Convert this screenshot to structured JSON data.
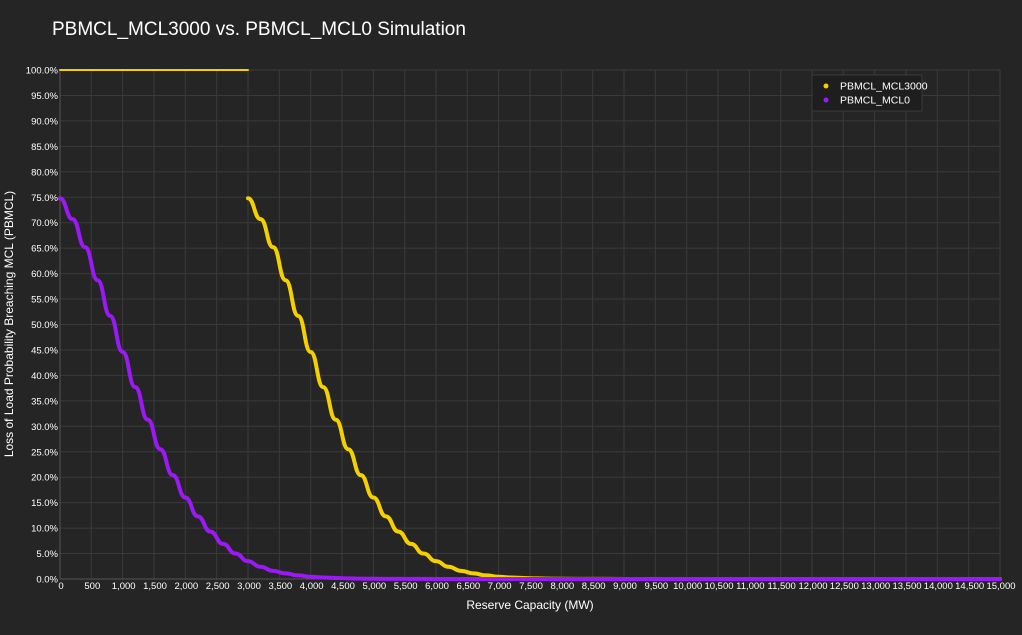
{
  "chart_data": {
    "type": "line",
    "title": "PBMCL_MCL3000 vs. PBMCL_MCL0 Simulation",
    "xlabel": "Reserve Capacity (MW)",
    "ylabel": "Loss of Load Probability Breaching MCL (PBMCL)",
    "xlim": [
      0,
      15000
    ],
    "ylim": [
      0,
      100
    ],
    "x_ticks": [
      "0",
      "500",
      "1,000",
      "1,500",
      "2,000",
      "2,500",
      "3,000",
      "3,500",
      "4,000",
      "4,500",
      "5,000",
      "5,500",
      "6,000",
      "6,500",
      "7,000",
      "7,500",
      "8,000",
      "8,500",
      "9,000",
      "9,500",
      "10,000",
      "10,500",
      "11,000",
      "11,500",
      "12,000",
      "12,500",
      "13,000",
      "13,500",
      "14,000",
      "14,500",
      "15,000"
    ],
    "y_ticks": [
      "0.0%",
      "5.0%",
      "10.0%",
      "15.0%",
      "20.0%",
      "25.0%",
      "30.0%",
      "35.0%",
      "40.0%",
      "45.0%",
      "50.0%",
      "55.0%",
      "60.0%",
      "65.0%",
      "70.0%",
      "75.0%",
      "80.0%",
      "85.0%",
      "90.0%",
      "95.0%",
      "100.0%"
    ],
    "grid": true,
    "legend_position": "top-right",
    "series": [
      {
        "name": "PBMCL_MCL3000",
        "color": "#f5d000",
        "x": [
          0,
          3000,
          3000,
          3200,
          3400,
          3600,
          3800,
          4000,
          4200,
          4400,
          4600,
          4800,
          5000,
          5200,
          5400,
          5600,
          5800,
          6000,
          6200,
          6400,
          6600,
          6800,
          7000,
          7200,
          7400,
          7600,
          7800,
          8000,
          8500,
          9000,
          10000,
          12000,
          15000
        ],
        "y": [
          100,
          100,
          74.8,
          70.7,
          65.2,
          58.7,
          51.7,
          44.6,
          37.7,
          31.3,
          25.5,
          20.4,
          16.0,
          12.3,
          9.3,
          6.9,
          5.0,
          3.5,
          2.4,
          1.6,
          1.1,
          0.7,
          0.45,
          0.3,
          0.2,
          0.12,
          0.07,
          0.04,
          0.02,
          0.01,
          0,
          0,
          0
        ]
      },
      {
        "name": "PBMCL_MCL0",
        "color": "#9b19f5",
        "x": [
          0,
          200,
          400,
          600,
          800,
          1000,
          1200,
          1400,
          1600,
          1800,
          2000,
          2200,
          2400,
          2600,
          2800,
          3000,
          3200,
          3400,
          3600,
          3800,
          4000,
          4200,
          4400,
          4600,
          4800,
          5000,
          5500,
          6000,
          7000,
          9000,
          12000,
          15000
        ],
        "y": [
          74.8,
          70.7,
          65.2,
          58.7,
          51.7,
          44.6,
          37.7,
          31.3,
          25.5,
          20.4,
          16.0,
          12.3,
          9.3,
          6.9,
          5.0,
          3.5,
          2.4,
          1.6,
          1.1,
          0.7,
          0.45,
          0.3,
          0.2,
          0.12,
          0.07,
          0.04,
          0.02,
          0.01,
          0,
          0,
          0,
          0
        ]
      }
    ]
  }
}
